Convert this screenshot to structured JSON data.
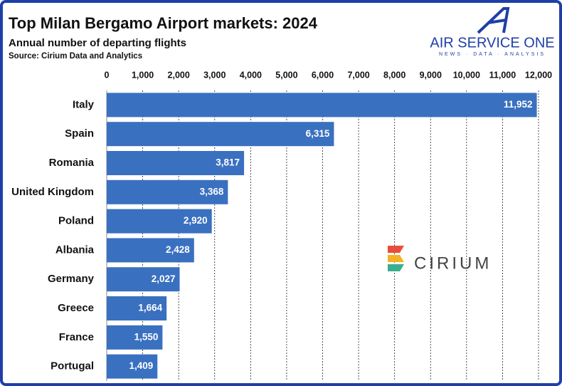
{
  "chart_data": {
    "type": "bar",
    "orientation": "horizontal",
    "title": "Top Milan Bergamo Airport markets: 2024",
    "subtitle": "Annual number of departing flights",
    "source": "Source: Cirium Data and Analytics",
    "logo_text": "AIR SERVICE ONE",
    "logo_tagline": "NEWS · DATA · ANALYSIS",
    "watermark": "CIRIUM",
    "categories": [
      "Italy",
      "Spain",
      "Romania",
      "United Kingdom",
      "Poland",
      "Albania",
      "Germany",
      "Greece",
      "France",
      "Portugal"
    ],
    "values": [
      11952,
      6315,
      3817,
      3368,
      2920,
      2428,
      2027,
      1664,
      1550,
      1409
    ],
    "value_labels": [
      "11,952",
      "6,315",
      "3,817",
      "3,368",
      "2,920",
      "2,428",
      "2,027",
      "1,664",
      "1,550",
      "1,409"
    ],
    "color": "#3a70c0",
    "xlim": [
      0,
      12000
    ],
    "xticks": [
      0,
      {
        "value": 1000,
        "label": "1,000"
      },
      {
        "value": 2000,
        "label": "2,000"
      },
      {
        "value": 3000,
        "label": "3,000"
      },
      {
        "value": 4000,
        "label": "4,000"
      },
      {
        "value": 5000,
        "label": "5,000"
      },
      {
        "value": 6000,
        "label": "6,000"
      },
      {
        "value": 7000,
        "label": "7,000"
      },
      {
        "value": 8000,
        "label": "8,000"
      },
      {
        "value": 9000,
        "label": "9,000"
      },
      {
        "value": 10000,
        "label": "10,000"
      },
      {
        "value": 11000,
        "label": "11,000"
      },
      {
        "value": 12000,
        "label": "12,000"
      }
    ],
    "grid": true
  }
}
